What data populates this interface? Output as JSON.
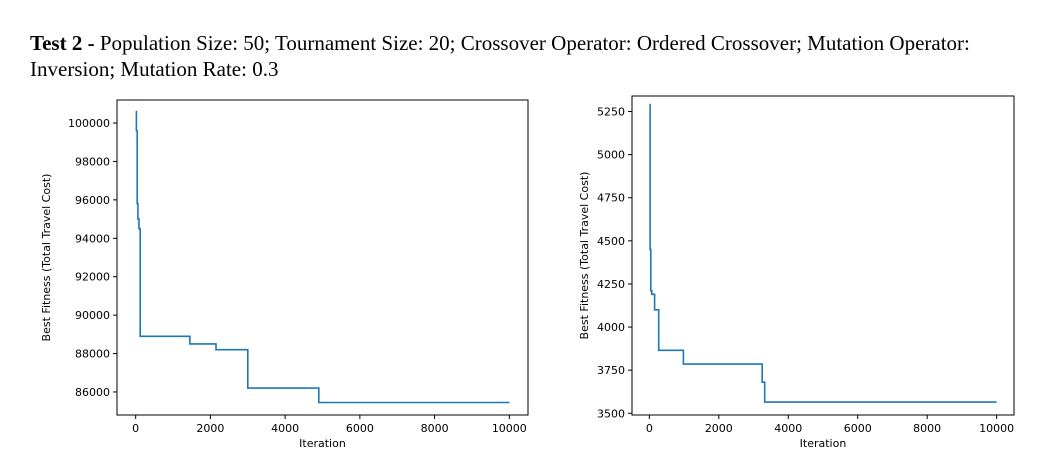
{
  "caption": {
    "bold": "Test 2 -",
    "text": " Population Size: 50; Tournament Size: 20; Crossover Operator: Ordered Crossover; Mutation Operator: Inversion; Mutation Rate: 0.3"
  },
  "colors": {
    "line": "#1f77b4",
    "axes": "#000000"
  },
  "chart_data": [
    {
      "type": "line",
      "title": "",
      "xlabel": "Iteration",
      "ylabel": "Best Fitness (Total Travel Cost)",
      "xlim": [
        -500,
        10500
      ],
      "ylim": [
        84800,
        101200
      ],
      "xticks": [
        0,
        2000,
        4000,
        6000,
        8000,
        10000
      ],
      "xtick_labels": [
        "0",
        "2000",
        "4000",
        "6000",
        "8000",
        "10000"
      ],
      "yticks": [
        86000,
        88000,
        90000,
        92000,
        94000,
        96000,
        98000,
        100000
      ],
      "ytick_labels": [
        "86000",
        "88000",
        "90000",
        "92000",
        "94000",
        "96000",
        "98000",
        "100000"
      ],
      "series": [
        {
          "x": [
            0,
            20,
            20,
            40,
            40,
            60,
            60,
            90,
            90,
            120,
            120,
            1450,
            1450,
            2150,
            2150,
            3000,
            3000,
            4900,
            4900,
            10000
          ],
          "y": [
            100600,
            100600,
            99600,
            99600,
            95800,
            95800,
            95000,
            95000,
            94500,
            94500,
            88900,
            88900,
            88500,
            88500,
            88200,
            88200,
            86200,
            86200,
            85450,
            85450
          ]
        }
      ]
    },
    {
      "type": "line",
      "title": "",
      "xlabel": "Iteration",
      "ylabel": "Best Fitness (Total Travel Cost)",
      "xlim": [
        -500,
        10500
      ],
      "ylim": [
        3490,
        5340
      ],
      "xticks": [
        0,
        2000,
        4000,
        6000,
        8000,
        10000
      ],
      "xtick_labels": [
        "0",
        "2000",
        "4000",
        "6000",
        "8000",
        "10000"
      ],
      "yticks": [
        3500,
        3750,
        4000,
        4250,
        4500,
        4750,
        5000,
        5250
      ],
      "ytick_labels": [
        "3500",
        "3750",
        "4000",
        "4250",
        "4500",
        "4750",
        "5000",
        "5250"
      ],
      "series": [
        {
          "x": [
            0,
            20,
            20,
            40,
            40,
            70,
            70,
            150,
            150,
            270,
            270,
            980,
            980,
            3250,
            3250,
            3320,
            3320,
            10000
          ],
          "y": [
            5290,
            5290,
            4450,
            4450,
            4210,
            4210,
            4190,
            4190,
            4100,
            4100,
            3865,
            3865,
            3785,
            3785,
            3680,
            3680,
            3565,
            3565
          ]
        }
      ]
    }
  ]
}
